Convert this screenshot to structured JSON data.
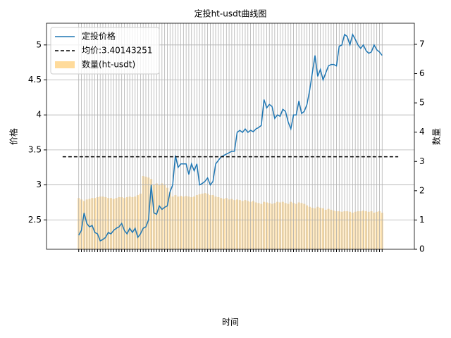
{
  "chart_data": {
    "type": "line-bar-dual",
    "title": "定投ht-usdt曲线图",
    "xlabel": "时间",
    "ylabel": "价格",
    "y2label": "数量",
    "categories": [
      null,
      null,
      null,
      null,
      null,
      null,
      null,
      null,
      null,
      null,
      null,
      null,
      null,
      null,
      null,
      null,
      null,
      null,
      null,
      null,
      null,
      null,
      null,
      null,
      null,
      null,
      null,
      null,
      null,
      null,
      null,
      null,
      null,
      null,
      null,
      null,
      null,
      null,
      null,
      null,
      null,
      null,
      null,
      null,
      null,
      null,
      null,
      null,
      null,
      null,
      null,
      null,
      null,
      null,
      null,
      null,
      null,
      null,
      null,
      null,
      null,
      null,
      null,
      null,
      null,
      null,
      null,
      null,
      null,
      null,
      null,
      null,
      null,
      null,
      null,
      null,
      null,
      null,
      null,
      null,
      null,
      null,
      null,
      null,
      null,
      null,
      null,
      null,
      null,
      null,
      null,
      null,
      null,
      null,
      null,
      null,
      null,
      null,
      null,
      null,
      null,
      null,
      null,
      null,
      null,
      null,
      null,
      null,
      null,
      null,
      null,
      null,
      null,
      null
    ],
    "series": [
      {
        "name": "定投价格",
        "kind": "line",
        "color": "#1f77b4",
        "values": [
          2.28,
          2.35,
          2.6,
          2.45,
          2.4,
          2.42,
          2.32,
          2.3,
          2.2,
          2.22,
          2.25,
          2.32,
          2.3,
          2.35,
          2.38,
          2.4,
          2.45,
          2.35,
          2.3,
          2.38,
          2.32,
          2.38,
          2.25,
          2.3,
          2.38,
          2.4,
          2.5,
          3.0,
          2.6,
          2.58,
          2.7,
          2.65,
          2.68,
          2.7,
          2.9,
          3.0,
          3.42,
          3.25,
          3.3,
          3.3,
          3.3,
          3.15,
          3.3,
          3.2,
          3.3,
          3.0,
          3.02,
          3.05,
          3.1,
          3.0,
          3.05,
          3.3,
          3.35,
          3.4,
          3.42,
          3.44,
          3.46,
          3.48,
          3.48,
          3.75,
          3.78,
          3.75,
          3.8,
          3.75,
          3.78,
          3.76,
          3.8,
          3.82,
          3.85,
          4.22,
          4.1,
          4.15,
          4.12,
          3.95,
          4.0,
          3.98,
          4.08,
          4.05,
          3.9,
          3.8,
          4.0,
          4.0,
          4.2,
          4.02,
          4.05,
          4.15,
          4.35,
          4.6,
          4.85,
          4.55,
          4.65,
          4.5,
          4.6,
          4.7,
          4.72,
          4.72,
          4.7,
          4.98,
          5.0,
          5.15,
          5.12,
          5.0,
          5.15,
          5.08,
          5.0,
          4.95,
          5.0,
          4.92,
          4.88,
          4.9,
          5.0,
          4.93,
          4.9,
          4.85
        ]
      },
      {
        "name": "均价:3.40143251",
        "kind": "hline",
        "color": "#000000",
        "value": 3.40143251
      },
      {
        "name": "数量(ht-usdt)",
        "kind": "bar",
        "axis": "y2",
        "color": "#ffdb9b",
        "values": [
          1.75,
          1.7,
          1.65,
          1.7,
          1.72,
          1.75,
          1.75,
          1.78,
          1.8,
          1.8,
          1.78,
          1.75,
          1.75,
          1.72,
          1.75,
          1.78,
          1.78,
          1.75,
          1.78,
          1.8,
          1.78,
          1.8,
          1.85,
          1.9,
          2.5,
          2.48,
          2.45,
          2.4,
          2.2,
          2.25,
          2.2,
          2.25,
          2.2,
          2.1,
          1.95,
          1.8,
          1.85,
          1.8,
          1.82,
          1.8,
          1.82,
          1.8,
          1.78,
          1.8,
          1.85,
          1.88,
          1.9,
          1.92,
          1.9,
          1.85,
          1.85,
          1.8,
          1.78,
          1.75,
          1.72,
          1.75,
          1.7,
          1.72,
          1.68,
          1.7,
          1.68,
          1.65,
          1.68,
          1.65,
          1.62,
          1.65,
          1.6,
          1.58,
          1.55,
          1.62,
          1.6,
          1.58,
          1.55,
          1.58,
          1.62,
          1.6,
          1.62,
          1.58,
          1.55,
          1.62,
          1.58,
          1.55,
          1.6,
          1.58,
          1.55,
          1.5,
          1.45,
          1.42,
          1.4,
          1.45,
          1.42,
          1.4,
          1.35,
          1.38,
          1.35,
          1.32,
          1.3,
          1.3,
          1.28,
          1.3,
          1.3,
          1.28,
          1.25,
          1.28,
          1.3,
          1.3,
          1.32,
          1.3,
          1.28,
          1.3,
          1.25,
          1.28,
          1.3,
          1.25
        ]
      }
    ],
    "ylim": [
      2.08,
      5.31
    ],
    "yticks": [
      2.5,
      3.0,
      3.5,
      4.0,
      4.5,
      5.0
    ],
    "y2lim": [
      0,
      7.72
    ],
    "y2ticks": [
      0,
      1,
      2,
      3,
      4,
      5,
      6,
      7
    ],
    "grid": true,
    "legend": "upper left"
  }
}
